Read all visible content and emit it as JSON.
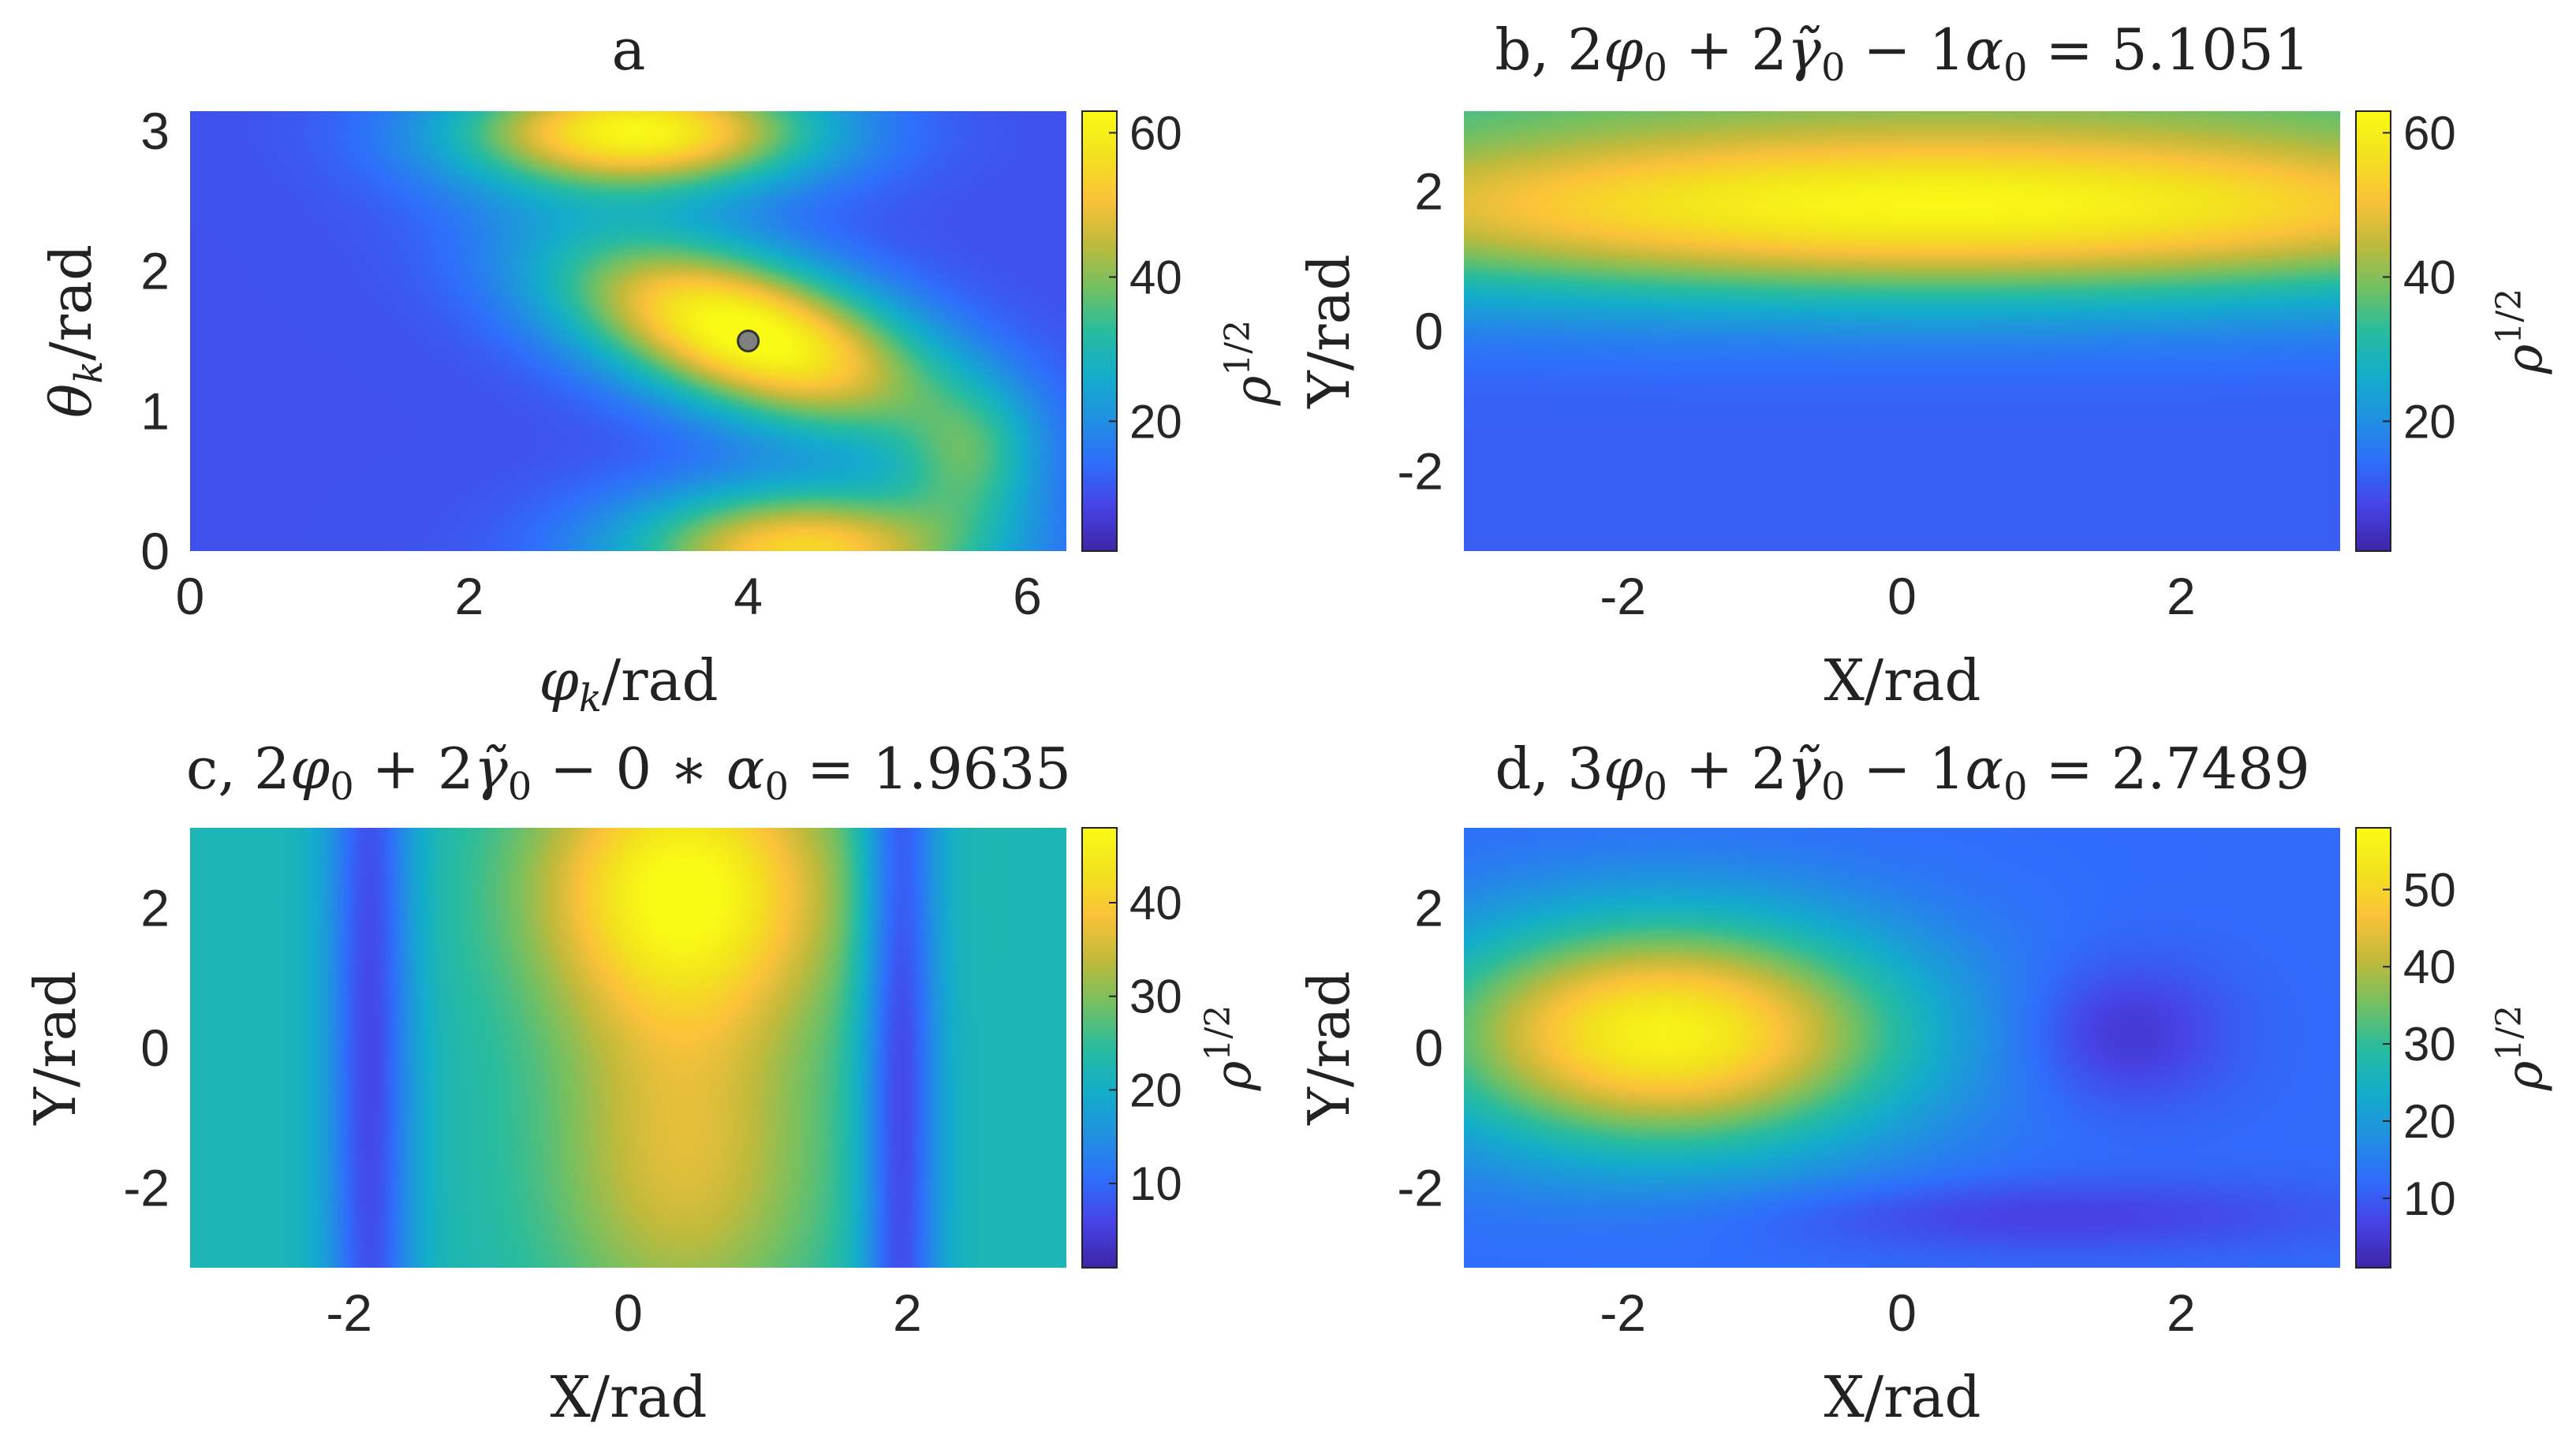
{
  "colormap": [
    "#3e26a8",
    "#4743e6",
    "#2f6efc",
    "#2191e1",
    "#13aeca",
    "#29bc9e",
    "#74c062",
    "#c1ba3b",
    "#fbc23a",
    "#f3e21e",
    "#f9fb15"
  ],
  "marker": {
    "x": 4.0,
    "y": 1.5,
    "color": "#808080"
  },
  "chart_data": [
    {
      "type": "heatmap",
      "panel": "a",
      "title": "a",
      "xlabel": "φk/rad",
      "ylabel": "θk/rad",
      "xlim": [
        0,
        6.28
      ],
      "ylim": [
        0,
        3.14
      ],
      "xticks": [
        "0",
        "2",
        "4",
        "6"
      ],
      "xtick_values": [
        0,
        2,
        4,
        6
      ],
      "yticks": [
        "0",
        "1",
        "2",
        "3"
      ],
      "ytick_values": [
        0,
        1,
        2,
        3
      ],
      "colorbar_label": "ρ1/2",
      "clim": [
        2,
        63
      ],
      "colorbar_ticks": [
        "20",
        "40",
        "60"
      ],
      "colorbar_tick_values": [
        20,
        40,
        60
      ],
      "background_value": 10,
      "peaks": [
        {
          "x": 4.0,
          "y": 1.55,
          "sx": 0.95,
          "sy": 0.48,
          "rho": -0.55,
          "amp": 55
        },
        {
          "x": 3.2,
          "y": 3.0,
          "sx": 0.9,
          "sy": 0.3,
          "rho": 0,
          "amp": 52
        },
        {
          "x": 4.4,
          "y": 0.0,
          "sx": 0.9,
          "sy": 0.32,
          "rho": 0,
          "amp": 45
        },
        {
          "x": 5.6,
          "y": 0.65,
          "sx": 0.35,
          "sy": 0.35,
          "rho": 0,
          "amp": 18
        }
      ]
    },
    {
      "type": "heatmap",
      "panel": "b",
      "title": "b, 2φ0 + 2γ̃0 − 1α0 = 5.1051",
      "title_prefix": "b,",
      "title_value": "5.1051",
      "xlabel": "X/rad",
      "ylabel": "Y/rad",
      "xlim": [
        -3.14,
        3.14
      ],
      "ylim": [
        -3.14,
        3.14
      ],
      "xticks": [
        "-2",
        "0",
        "2"
      ],
      "xtick_values": [
        -2,
        0,
        2
      ],
      "yticks": [
        "-2",
        "0",
        "2"
      ],
      "ytick_values": [
        -2,
        0,
        2
      ],
      "colorbar_label": "ρ1/2",
      "clim": [
        2,
        63
      ],
      "colorbar_ticks": [
        "20",
        "40",
        "60"
      ],
      "colorbar_tick_values": [
        20,
        40,
        60
      ],
      "background_value": 12,
      "peaks": [
        {
          "x": 0.3,
          "y": 1.8,
          "sx": 4.2,
          "sy": 0.95,
          "rho": 0,
          "amp": 50
        },
        {
          "x": 0,
          "y": 3.6,
          "sx": 20,
          "sy": 0.6,
          "rho": 0,
          "amp": 14
        }
      ]
    },
    {
      "type": "heatmap",
      "panel": "c",
      "title": "c, 2φ0 + 2γ̃0 − 0 ∗ α0 = 1.9635",
      "title_prefix": "c,",
      "title_value": "1.9635",
      "xlabel": "X/rad",
      "ylabel": "Y/rad",
      "xlim": [
        -3.14,
        3.14
      ],
      "ylim": [
        -3.14,
        3.14
      ],
      "xticks": [
        "-2",
        "0",
        "2"
      ],
      "xtick_values": [
        -2,
        0,
        2
      ],
      "yticks": [
        "-2",
        "0",
        "2"
      ],
      "ytick_values": [
        -2,
        0,
        2
      ],
      "colorbar_label": "ρ1/2",
      "clim": [
        1,
        48
      ],
      "colorbar_ticks": [
        "10",
        "20",
        "30",
        "40"
      ],
      "colorbar_tick_values": [
        10,
        20,
        30,
        40
      ],
      "background_value": 22,
      "peaks": [
        {
          "x": 0.4,
          "y": 2.3,
          "sx": 0.75,
          "sy": 1.4,
          "rho": 0,
          "amp": 26
        },
        {
          "x": 0.4,
          "y": -1.6,
          "sx": 0.7,
          "sy": 1.8,
          "rho": 0,
          "amp": 14
        },
        {
          "x": -1.85,
          "y": 0,
          "sx": 0.22,
          "sy": 8,
          "rho": 0,
          "amp": -16
        },
        {
          "x": 1.95,
          "y": 0,
          "sx": 0.2,
          "sy": 8,
          "rho": 0,
          "amp": -17
        }
      ]
    },
    {
      "type": "heatmap",
      "panel": "d",
      "title": "d, 3φ0 + 2γ̃0 − 1α0 = 2.7489",
      "title_prefix": "d,",
      "title_value": "2.7489",
      "xlabel": "X/rad",
      "ylabel": "Y/rad",
      "xlim": [
        -3.14,
        3.14
      ],
      "ylim": [
        -3.14,
        3.14
      ],
      "xticks": [
        "-2",
        "0",
        "2"
      ],
      "xtick_values": [
        -2,
        0,
        2
      ],
      "yticks": [
        "-2",
        "0",
        "2"
      ],
      "ytick_values": [
        -2,
        0,
        2
      ],
      "colorbar_label": "ρ1/2",
      "clim": [
        1,
        58
      ],
      "colorbar_ticks": [
        "10",
        "20",
        "30",
        "40",
        "50"
      ],
      "colorbar_tick_values": [
        10,
        20,
        30,
        40,
        50
      ],
      "background_value": 12,
      "peaks": [
        {
          "x": -1.7,
          "y": 0.2,
          "sx": 1.2,
          "sy": 1.15,
          "rho": 0,
          "amp": 44
        },
        {
          "x": 1.6,
          "y": 0.2,
          "sx": 0.5,
          "sy": 0.7,
          "rho": 0,
          "amp": -8
        },
        {
          "x": 1.0,
          "y": -2.4,
          "sx": 1.5,
          "sy": 0.35,
          "rho": 0,
          "amp": -6
        }
      ]
    }
  ]
}
